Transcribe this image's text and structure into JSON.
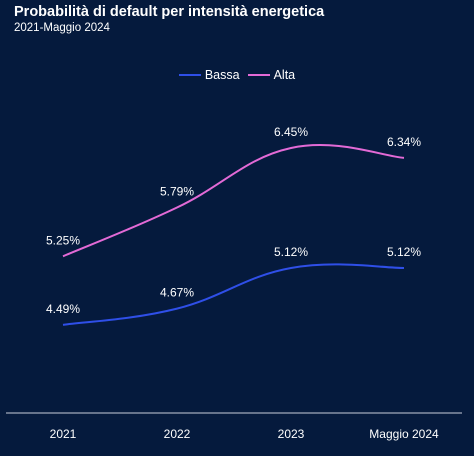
{
  "title": "Probabilità di default per intensità energetica",
  "subtitle": "2021-Maggio 2024",
  "chart_data": {
    "type": "line",
    "categories": [
      "2021",
      "2022",
      "2023",
      "Maggio 2024"
    ],
    "series": [
      {
        "name": "Bassa",
        "values": [
          4.49,
          4.67,
          5.12,
          5.12
        ],
        "labels": [
          "4.49%",
          "4.67%",
          "5.12%",
          "5.12%"
        ],
        "color": "#2f4fe8"
      },
      {
        "name": "Alta",
        "values": [
          5.25,
          5.79,
          6.45,
          6.34
        ],
        "labels": [
          "5.25%",
          "5.79%",
          "6.45%",
          "6.34%"
        ],
        "color": "#e36ad6"
      }
    ],
    "legend_position": "top-center",
    "grid": false
  },
  "colors": {
    "background": "#051a3d",
    "axis": "#c9cfdb",
    "text": "#ffffff"
  }
}
